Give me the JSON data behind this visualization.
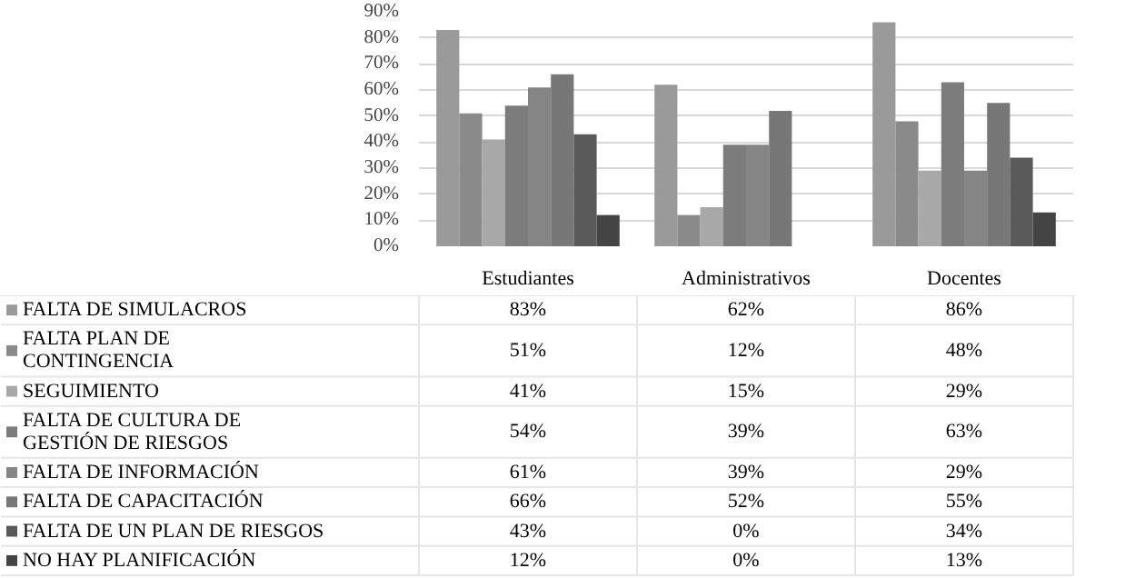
{
  "chart_data": {
    "type": "bar",
    "categories": [
      "Estudiantes",
      "Administrativos",
      "Docentes"
    ],
    "series": [
      {
        "name": "FALTA DE SIMULACROS",
        "color": "#9a9a9a",
        "values": [
          83,
          62,
          86
        ],
        "value_labels": [
          "83%",
          "62%",
          "86%"
        ]
      },
      {
        "name": "FALTA PLAN DE\nCONTINGENCIA",
        "color": "#8a8a8a",
        "values": [
          51,
          12,
          48
        ],
        "value_labels": [
          "51%",
          "12%",
          "48%"
        ]
      },
      {
        "name": "SEGUIMIENTO",
        "color": "#a8a8a8",
        "values": [
          41,
          15,
          29
        ],
        "value_labels": [
          "41%",
          "15%",
          "29%"
        ]
      },
      {
        "name": "FALTA DE CULTURA DE\n  GESTIÓN DE RIESGOS",
        "color": "#7c7c7c",
        "values": [
          54,
          39,
          63
        ],
        "value_labels": [
          "54%",
          "39%",
          "63%"
        ]
      },
      {
        "name": "FALTA DE INFORMACIÓN",
        "color": "#858585",
        "values": [
          61,
          39,
          29
        ],
        "value_labels": [
          "61%",
          "39%",
          "29%"
        ]
      },
      {
        "name": "FALTA DE CAPACITACIÓN",
        "color": "#777777",
        "values": [
          66,
          52,
          55
        ],
        "value_labels": [
          "66%",
          "52%",
          "55%"
        ]
      },
      {
        "name": "FALTA DE UN PLAN DE RIESGOS",
        "color": "#595959",
        "values": [
          43,
          0,
          34
        ],
        "value_labels": [
          "43%",
          "0%",
          "34%"
        ]
      },
      {
        "name": "NO HAY PLANIFICACIÓN",
        "color": "#444444",
        "values": [
          12,
          0,
          13
        ],
        "value_labels": [
          "12%",
          "0%",
          "13%"
        ]
      }
    ],
    "ylim": [
      0,
      90
    ],
    "yticks": [
      {
        "value": 0,
        "label": "0%"
      },
      {
        "value": 10,
        "label": "10%"
      },
      {
        "value": 20,
        "label": "20%"
      },
      {
        "value": 30,
        "label": "30%"
      },
      {
        "value": 40,
        "label": "40%"
      },
      {
        "value": 50,
        "label": "50%"
      },
      {
        "value": 60,
        "label": "60%"
      },
      {
        "value": 70,
        "label": "70%"
      },
      {
        "value": 80,
        "label": "80%"
      },
      {
        "value": 90,
        "label": "90%"
      }
    ],
    "grid": "y",
    "legend": "bottom"
  }
}
